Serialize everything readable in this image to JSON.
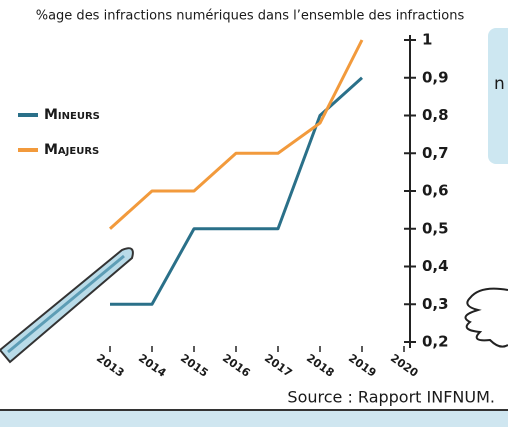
{
  "chart_data": {
    "type": "line",
    "title": "%age des infractions numériques dans l’ensemble des infractions",
    "source": "Source : Rapport INFNUM.",
    "side_note": "n",
    "categories": [
      "2013",
      "2014",
      "2015",
      "2016",
      "2017",
      "2018",
      "2019",
      "2020"
    ],
    "series": [
      {
        "name": "Mineurs",
        "color": "#2a7089",
        "values": [
          0.3,
          0.3,
          0.5,
          0.5,
          0.5,
          0.8,
          0.9,
          null
        ]
      },
      {
        "name": "Majeurs",
        "color": "#f29a3c",
        "values": [
          0.5,
          0.6,
          0.6,
          0.7,
          0.7,
          0.78,
          1.0,
          null
        ]
      }
    ],
    "ylim": [
      0.2,
      1
    ],
    "yticks": [
      {
        "value": 0.2,
        "label": "0,2"
      },
      {
        "value": 0.3,
        "label": "0,3"
      },
      {
        "value": 0.4,
        "label": "0,4"
      },
      {
        "value": 0.5,
        "label": "0,5"
      },
      {
        "value": 0.6,
        "label": "0,6"
      },
      {
        "value": 0.7,
        "label": "0,7"
      },
      {
        "value": 0.8,
        "label": "0,8"
      },
      {
        "value": 0.9,
        "label": "0,9"
      },
      1
    ],
    "y_axis_side": "right",
    "legend": "left"
  }
}
